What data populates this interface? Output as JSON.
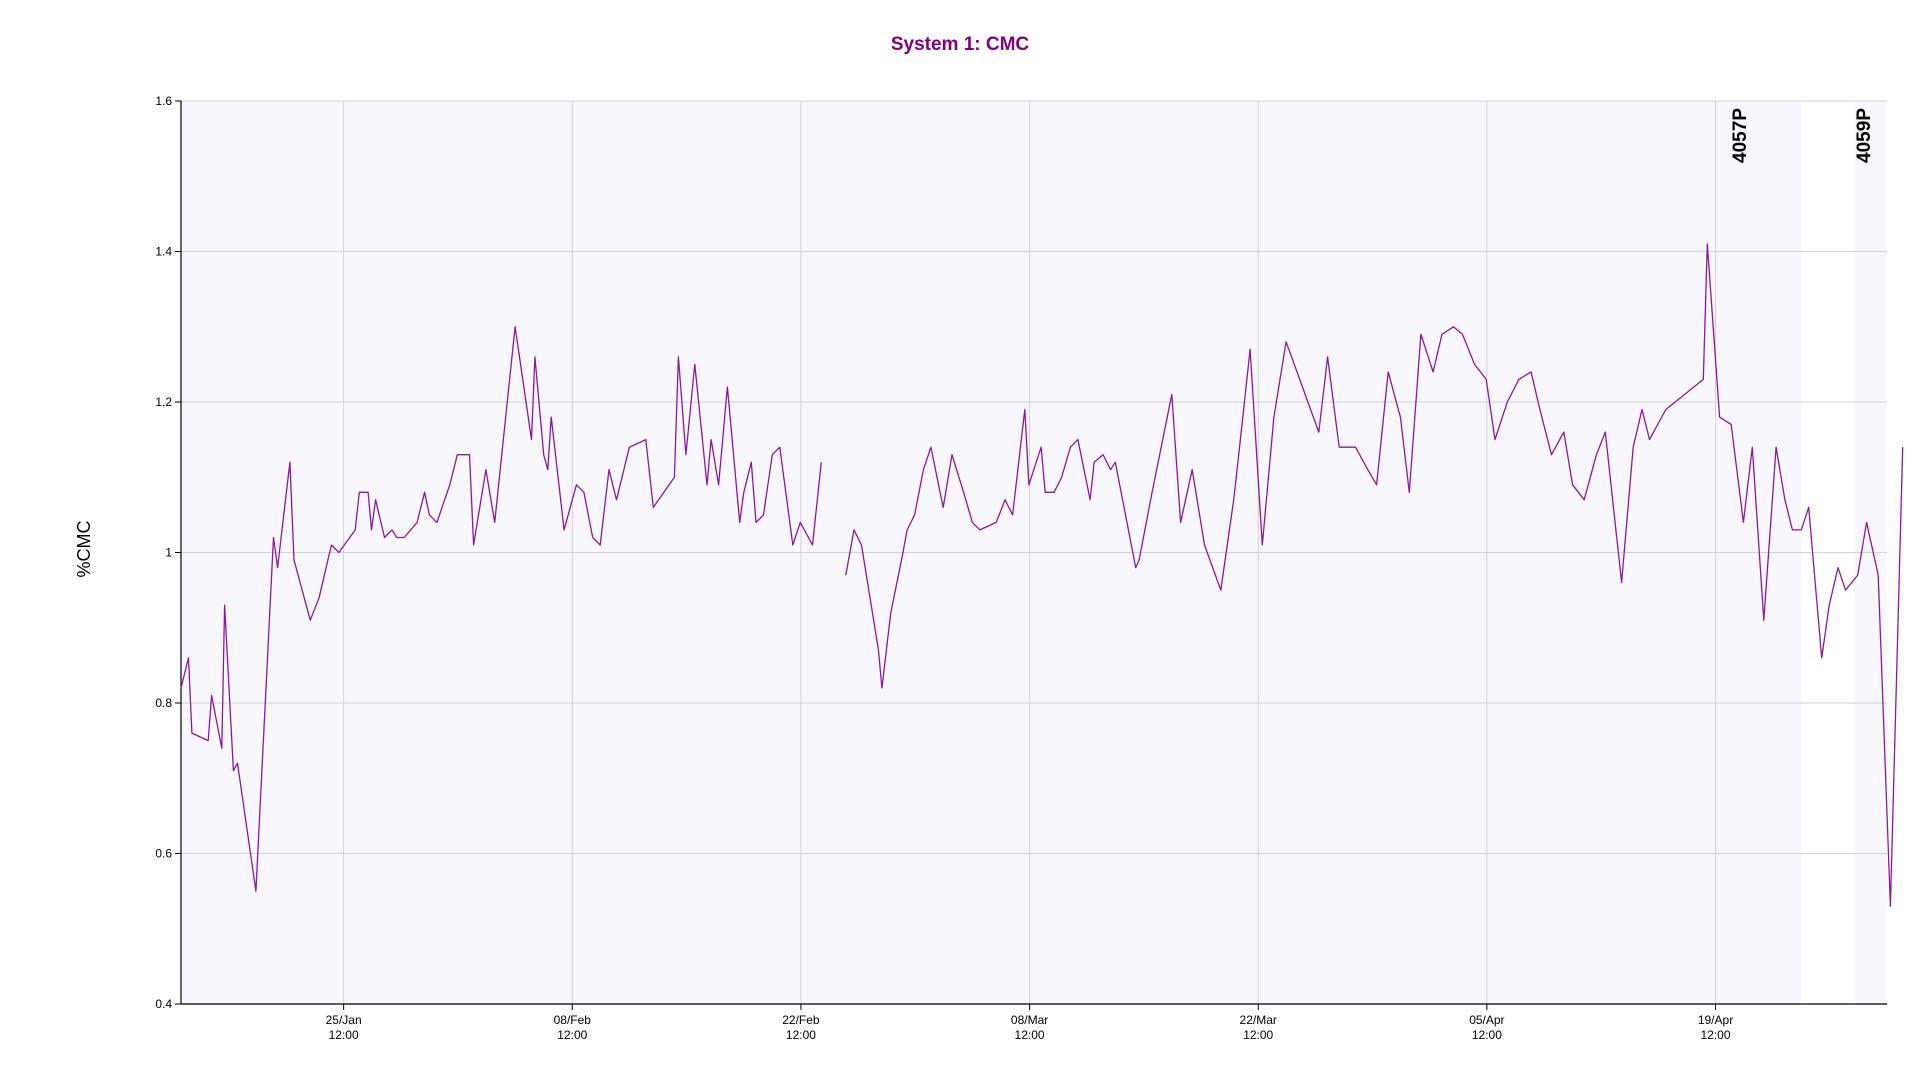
{
  "colors": {
    "title": "#800080",
    "series": "#8B1A9A",
    "band": "#F7F7FD",
    "grid": "#D3D3D3",
    "axis": "#000000"
  },
  "chart_data": {
    "type": "line",
    "title": "System 1: CMC",
    "xlabel": "",
    "ylabel": "%CMC",
    "ylim": [
      0.4,
      1.6
    ],
    "xlim": [
      "2023-01-15T13:00",
      "2023-04-30T00:00"
    ],
    "grid": true,
    "y_ticks": [
      "1.6",
      "1.4",
      "1.2",
      "1",
      "0.8",
      "0.6",
      "0.4"
    ],
    "x_ticks": [
      {
        "date": "2023-01-25T12:00",
        "label1": "25/Jan",
        "label2": "12:00"
      },
      {
        "date": "2023-02-08T12:00",
        "label1": "08/Feb",
        "label2": "12:00"
      },
      {
        "date": "2023-02-22T12:00",
        "label1": "22/Feb",
        "label2": "12:00"
      },
      {
        "date": "2023-03-08T12:00",
        "label1": "08/Mar",
        "label2": "12:00"
      },
      {
        "date": "2023-03-22T12:00",
        "label1": "22/Mar",
        "label2": "12:00"
      },
      {
        "date": "2023-04-05T12:00",
        "label1": "05/Apr",
        "label2": "12:00"
      },
      {
        "date": "2023-04-19T12:00",
        "label1": "19/Apr",
        "label2": "12:00"
      }
    ],
    "bands": [
      {
        "name": "",
        "start": "2023-01-15T13:00",
        "end": "2023-04-24T19:00"
      },
      {
        "name": "4057P",
        "start": "2023-04-24T19:00",
        "end": "2023-04-24T19:00"
      },
      {
        "name": "4059P",
        "start": "2023-04-28T00:00",
        "end": "2023-04-30T00:00"
      }
    ],
    "series": [
      {
        "segments": [
          [
            [
              "2023-01-15T13:00",
              0.82
            ],
            [
              "2023-01-16T00:00",
              0.86
            ],
            [
              "2023-01-16T05:00",
              0.76
            ],
            [
              "2023-01-17T05:00",
              0.75
            ],
            [
              "2023-01-17T10:00",
              0.81
            ],
            [
              "2023-01-18T01:00",
              0.74
            ],
            [
              "2023-01-18T05:00",
              0.93
            ],
            [
              "2023-01-18T18:00",
              0.71
            ],
            [
              "2023-01-19T00:00",
              0.72
            ],
            [
              "2023-01-20T03:00",
              0.55
            ],
            [
              "2023-01-21T05:00",
              1.02
            ],
            [
              "2023-01-21T11:00",
              0.98
            ],
            [
              "2023-01-22T05:00",
              1.12
            ],
            [
              "2023-01-22T11:00",
              0.99
            ],
            [
              "2023-01-23T11:00",
              0.91
            ],
            [
              "2023-01-24T00:00",
              0.94
            ],
            [
              "2023-01-24T18:00",
              1.01
            ],
            [
              "2023-01-25T05:00",
              1.0
            ],
            [
              "2023-01-26T05:00",
              1.03
            ],
            [
              "2023-01-26T11:00",
              1.08
            ],
            [
              "2023-01-27T00:00",
              1.08
            ],
            [
              "2023-01-27T05:00",
              1.03
            ],
            [
              "2023-01-27T11:00",
              1.07
            ],
            [
              "2023-01-28T00:00",
              1.02
            ],
            [
              "2023-01-28T11:00",
              1.03
            ],
            [
              "2023-01-28T18:00",
              1.02
            ],
            [
              "2023-01-29T05:00",
              1.02
            ],
            [
              "2023-01-30T00:00",
              1.04
            ],
            [
              "2023-01-30T11:00",
              1.08
            ],
            [
              "2023-01-30T18:00",
              1.05
            ],
            [
              "2023-01-31T05:00",
              1.04
            ],
            [
              "2023-02-01T00:00",
              1.09
            ],
            [
              "2023-02-01T11:00",
              1.13
            ],
            [
              "2023-02-02T05:00",
              1.13
            ],
            [
              "2023-02-02T11:00",
              1.01
            ],
            [
              "2023-02-03T05:00",
              1.11
            ],
            [
              "2023-02-03T18:00",
              1.04
            ],
            [
              "2023-02-05T00:00",
              1.3
            ],
            [
              "2023-02-06T00:00",
              1.15
            ],
            [
              "2023-02-06T05:00",
              1.26
            ],
            [
              "2023-02-06T18:00",
              1.13
            ],
            [
              "2023-02-07T00:00",
              1.11
            ],
            [
              "2023-02-07T05:00",
              1.18
            ],
            [
              "2023-02-08T00:00",
              1.03
            ],
            [
              "2023-02-08T18:00",
              1.09
            ],
            [
              "2023-02-09T05:00",
              1.08
            ],
            [
              "2023-02-09T18:00",
              1.02
            ],
            [
              "2023-02-10T05:00",
              1.01
            ],
            [
              "2023-02-10T18:00",
              1.11
            ],
            [
              "2023-02-11T05:00",
              1.07
            ],
            [
              "2023-02-12T00:00",
              1.14
            ],
            [
              "2023-02-13T00:00",
              1.15
            ],
            [
              "2023-02-13T11:00",
              1.06
            ],
            [
              "2023-02-14T18:00",
              1.1
            ],
            [
              "2023-02-15T00:00",
              1.26
            ],
            [
              "2023-02-15T11:00",
              1.13
            ],
            [
              "2023-02-16T00:00",
              1.25
            ],
            [
              "2023-02-16T18:00",
              1.09
            ],
            [
              "2023-02-17T00:00",
              1.15
            ],
            [
              "2023-02-17T11:00",
              1.09
            ],
            [
              "2023-02-18T00:00",
              1.22
            ],
            [
              "2023-02-18T18:00",
              1.04
            ],
            [
              "2023-02-19T00:00",
              1.08
            ],
            [
              "2023-02-19T11:00",
              1.12
            ],
            [
              "2023-02-19T18:00",
              1.04
            ],
            [
              "2023-02-20T05:00",
              1.05
            ],
            [
              "2023-02-20T18:00",
              1.13
            ],
            [
              "2023-02-21T05:00",
              1.14
            ],
            [
              "2023-02-22T00:00",
              1.01
            ],
            [
              "2023-02-22T11:00",
              1.04
            ],
            [
              "2023-02-23T05:00",
              1.01
            ],
            [
              "2023-02-23T18:00",
              1.12
            ]
          ],
          [
            [
              "2023-02-25T06:00",
              0.97
            ],
            [
              "2023-02-25T18:00",
              1.03
            ],
            [
              "2023-02-26T05:00",
              1.01
            ],
            [
              "2023-02-27T06:00",
              0.87
            ],
            [
              "2023-02-27T11:00",
              0.82
            ],
            [
              "2023-02-28T00:00",
              0.92
            ],
            [
              "2023-02-28T18:00",
              1.0
            ],
            [
              "2023-03-01T00:00",
              1.03
            ],
            [
              "2023-03-01T11:00",
              1.05
            ],
            [
              "2023-03-02T00:00",
              1.11
            ],
            [
              "2023-03-02T11:00",
              1.14
            ],
            [
              "2023-03-03T05:00",
              1.06
            ],
            [
              "2023-03-03T18:00",
              1.13
            ],
            [
              "2023-03-04T11:00",
              1.08
            ],
            [
              "2023-03-05T00:00",
              1.04
            ],
            [
              "2023-03-05T11:00",
              1.03
            ],
            [
              "2023-03-06T11:00",
              1.04
            ],
            [
              "2023-03-07T00:00",
              1.07
            ],
            [
              "2023-03-07T11:00",
              1.05
            ],
            [
              "2023-03-08T05:00",
              1.19
            ],
            [
              "2023-03-08T11:00",
              1.09
            ],
            [
              "2023-03-09T05:00",
              1.14
            ],
            [
              "2023-03-09T11:00",
              1.08
            ],
            [
              "2023-03-10T00:00",
              1.08
            ],
            [
              "2023-03-10T11:00",
              1.1
            ],
            [
              "2023-03-11T00:00",
              1.14
            ],
            [
              "2023-03-11T11:00",
              1.15
            ],
            [
              "2023-03-12T05:00",
              1.07
            ],
            [
              "2023-03-12T11:00",
              1.12
            ],
            [
              "2023-03-13T00:00",
              1.13
            ],
            [
              "2023-03-13T11:00",
              1.11
            ],
            [
              "2023-03-13T18:00",
              1.12
            ],
            [
              "2023-03-15T00:00",
              0.98
            ],
            [
              "2023-03-15T05:00",
              0.99
            ],
            [
              "2023-03-16T00:00",
              1.08
            ],
            [
              "2023-03-17T05:00",
              1.21
            ],
            [
              "2023-03-17T18:00",
              1.04
            ],
            [
              "2023-03-18T11:00",
              1.11
            ],
            [
              "2023-03-19T05:00",
              1.01
            ],
            [
              "2023-03-20T05:00",
              0.95
            ],
            [
              "2023-03-21T00:00",
              1.07
            ],
            [
              "2023-03-21T11:00",
              1.16
            ],
            [
              "2023-03-22T00:00",
              1.27
            ],
            [
              "2023-03-22T18:00",
              1.01
            ],
            [
              "2023-03-23T11:00",
              1.18
            ],
            [
              "2023-03-24T05:00",
              1.28
            ],
            [
              "2023-03-26T05:00",
              1.16
            ],
            [
              "2023-03-26T18:00",
              1.26
            ],
            [
              "2023-03-27T11:00",
              1.14
            ],
            [
              "2023-03-28T11:00",
              1.14
            ],
            [
              "2023-03-29T05:00",
              1.11
            ],
            [
              "2023-03-29T18:00",
              1.09
            ],
            [
              "2023-03-30T11:00",
              1.24
            ],
            [
              "2023-03-31T05:00",
              1.18
            ],
            [
              "2023-03-31T18:00",
              1.08
            ],
            [
              "2023-04-01T11:00",
              1.29
            ],
            [
              "2023-04-02T05:00",
              1.24
            ],
            [
              "2023-04-02T18:00",
              1.29
            ],
            [
              "2023-04-03T11:00",
              1.3
            ],
            [
              "2023-04-04T00:00",
              1.29
            ],
            [
              "2023-04-04T18:00",
              1.25
            ],
            [
              "2023-04-05T11:00",
              1.23
            ],
            [
              "2023-04-06T00:00",
              1.15
            ],
            [
              "2023-04-06T18:00",
              1.2
            ],
            [
              "2023-04-07T11:00",
              1.23
            ],
            [
              "2023-04-08T05:00",
              1.24
            ],
            [
              "2023-04-08T18:00",
              1.19
            ],
            [
              "2023-04-09T11:00",
              1.13
            ],
            [
              "2023-04-10T05:00",
              1.16
            ],
            [
              "2023-04-10T18:00",
              1.09
            ],
            [
              "2023-04-11T11:00",
              1.07
            ],
            [
              "2023-04-12T05:00",
              1.13
            ],
            [
              "2023-04-12T18:00",
              1.16
            ],
            [
              "2023-04-13T18:00",
              0.96
            ],
            [
              "2023-04-14T11:00",
              1.14
            ],
            [
              "2023-04-15T00:00",
              1.19
            ],
            [
              "2023-04-15T11:00",
              1.15
            ],
            [
              "2023-04-16T11:00",
              1.19
            ],
            [
              "2023-04-18T18:00",
              1.23
            ],
            [
              "2023-04-19T00:00",
              1.41
            ],
            [
              "2023-04-19T18:00",
              1.18
            ],
            [
              "2023-04-20T11:00",
              1.17
            ],
            [
              "2023-04-21T05:00",
              1.04
            ],
            [
              "2023-04-21T18:00",
              1.14
            ],
            [
              "2023-04-22T11:00",
              0.91
            ],
            [
              "2023-04-23T05:00",
              1.14
            ],
            [
              "2023-04-23T18:00",
              1.07
            ],
            [
              "2023-04-24T05:00",
              1.03
            ],
            [
              "2023-04-24T18:00",
              1.03
            ],
            [
              "2023-04-25T05:00",
              1.06
            ],
            [
              "2023-04-26T00:00",
              0.86
            ],
            [
              "2023-04-26T11:00",
              0.93
            ],
            [
              "2023-04-27T00:00",
              0.98
            ],
            [
              "2023-04-27T11:00",
              0.95
            ],
            [
              "2023-04-28T05:00",
              0.97
            ],
            [
              "2023-04-28T18:00",
              1.04
            ],
            [
              "2023-04-29T11:00",
              0.97
            ],
            [
              "2023-04-30T05:00",
              0.53
            ],
            [
              "2023-04-30T23:00",
              1.14
            ]
          ]
        ]
      }
    ]
  }
}
